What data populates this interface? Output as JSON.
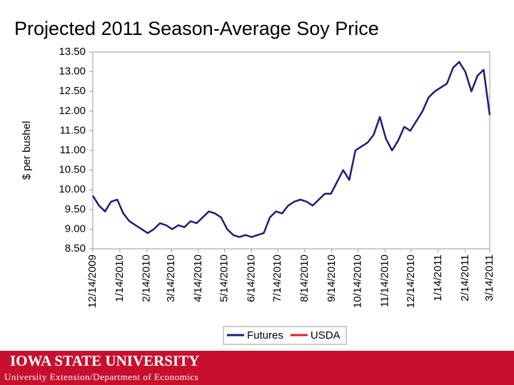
{
  "chart_data": {
    "type": "line",
    "title": "Projected 2011 Season-Average Soy Price",
    "y_label": "$ per bushel",
    "x": [
      "12/14/2009",
      "12/21/2009",
      "12/28/2009",
      "1/4/2010",
      "1/11/2010",
      "1/18/2010",
      "1/25/2010",
      "2/1/2010",
      "2/8/2010",
      "2/15/2010",
      "2/22/2010",
      "3/1/2010",
      "3/8/2010",
      "3/15/2010",
      "3/22/2010",
      "3/29/2010",
      "4/5/2010",
      "4/12/2010",
      "4/19/2010",
      "4/26/2010",
      "5/3/2010",
      "5/10/2010",
      "5/17/2010",
      "5/24/2010",
      "5/31/2010",
      "6/7/2010",
      "6/14/2010",
      "6/21/2010",
      "6/28/2010",
      "7/5/2010",
      "7/12/2010",
      "7/19/2010",
      "7/26/2010",
      "8/2/2010",
      "8/9/2010",
      "8/16/2010",
      "8/23/2010",
      "8/30/2010",
      "9/6/2010",
      "9/13/2010",
      "9/20/2010",
      "9/27/2010",
      "10/4/2010",
      "10/11/2010",
      "10/18/2010",
      "10/25/2010",
      "11/1/2010",
      "11/8/2010",
      "11/15/2010",
      "11/22/2010",
      "11/29/2010",
      "12/6/2010",
      "12/13/2010",
      "12/20/2010",
      "12/27/2010",
      "1/3/2011",
      "1/10/2011",
      "1/17/2011",
      "1/24/2011",
      "1/31/2011",
      "2/7/2011",
      "2/14/2011",
      "2/21/2011",
      "2/28/2011",
      "3/7/2011",
      "3/14/2011"
    ],
    "series": [
      {
        "name": "Futures",
        "color": "#1a1f7a",
        "values": [
          9.85,
          9.6,
          9.45,
          9.7,
          9.75,
          9.4,
          9.2,
          9.1,
          9.0,
          8.9,
          9.0,
          9.15,
          9.1,
          9.0,
          9.1,
          9.05,
          9.2,
          9.15,
          9.3,
          9.45,
          9.4,
          9.3,
          9.0,
          8.85,
          8.8,
          8.85,
          8.8,
          8.85,
          8.9,
          9.3,
          9.45,
          9.4,
          9.6,
          9.7,
          9.75,
          9.7,
          9.6,
          9.75,
          9.9,
          9.9,
          10.2,
          10.5,
          10.25,
          11.0,
          11.1,
          11.2,
          11.4,
          11.85,
          11.3,
          11.0,
          11.25,
          11.6,
          11.5,
          11.75,
          12.0,
          12.35,
          12.5,
          12.6,
          12.7,
          13.1,
          13.25,
          13.0,
          12.5,
          12.9,
          13.05,
          11.9
        ]
      },
      {
        "name": "USDA",
        "color": "#e8201c",
        "values": [
          null,
          null,
          null,
          null,
          null,
          null,
          null,
          null,
          null,
          null,
          null,
          null,
          null,
          null,
          null,
          null,
          null,
          null,
          null,
          null,
          null,
          null,
          null,
          null,
          null,
          null,
          null,
          null,
          null,
          null,
          null,
          null,
          null,
          null,
          null,
          null,
          null,
          null,
          null,
          null,
          null,
          null,
          null,
          null,
          null,
          null,
          null,
          null,
          null,
          null,
          null,
          null,
          null,
          null,
          null,
          null,
          null,
          null,
          null,
          null,
          null,
          null,
          null,
          null,
          null,
          null
        ]
      }
    ],
    "xlim": [
      "12/14/2009",
      "3/14/2011"
    ],
    "xticks": [
      "12/14/2009",
      "1/14/2010",
      "2/14/2010",
      "3/14/2010",
      "4/14/2010",
      "5/14/2010",
      "6/14/2010",
      "7/14/2010",
      "8/14/2010",
      "9/14/2010",
      "10/14/2010",
      "11/14/2010",
      "12/14/2010",
      "1/14/2011",
      "2/14/2011",
      "3/14/2011"
    ],
    "ylim": [
      8.5,
      13.5
    ],
    "yticks": [
      {
        "value": 8.5,
        "label": "8.50"
      },
      {
        "value": 9,
        "label": "9.00"
      },
      {
        "value": 9.5,
        "label": "9.50"
      },
      {
        "value": 10,
        "label": "10.00"
      },
      {
        "value": 10.5,
        "label": "10.50"
      },
      {
        "value": 11,
        "label": "11.00"
      },
      {
        "value": 11.5,
        "label": "11.50"
      },
      {
        "value": 12,
        "label": "12.00"
      },
      {
        "value": 12.5,
        "label": "12.50"
      },
      {
        "value": 13,
        "label": "13.00"
      },
      {
        "value": 13.5,
        "label": "13.50"
      }
    ],
    "legend": "bottom"
  },
  "footer": {
    "university": "IOWA STATE UNIVERSITY",
    "department": "University Extension/Department of Economics"
  }
}
